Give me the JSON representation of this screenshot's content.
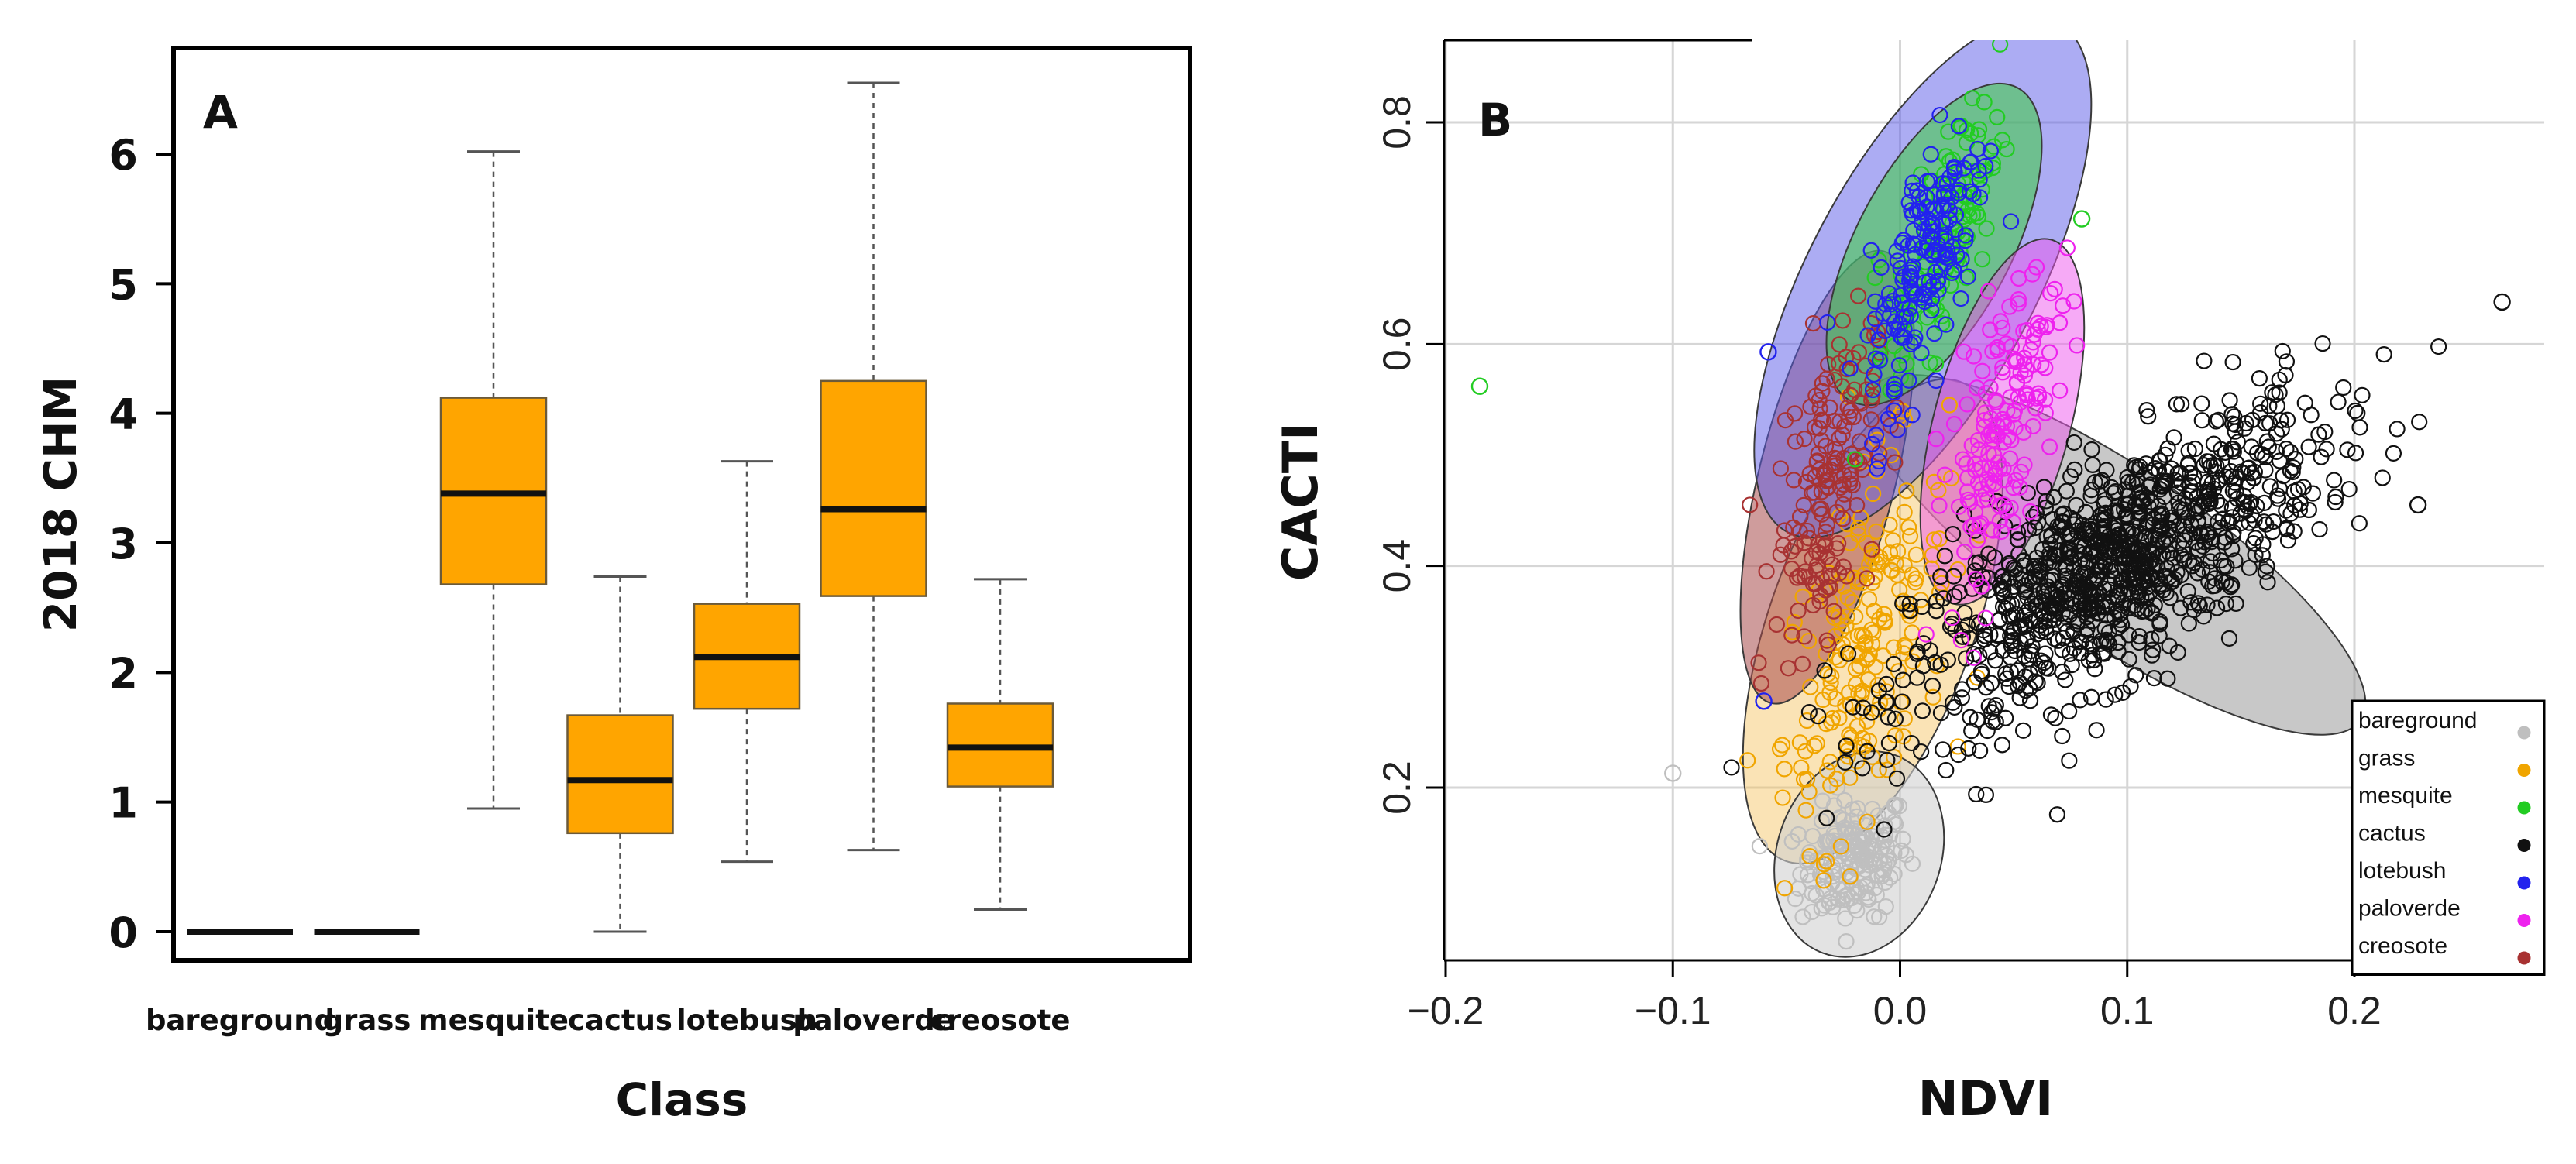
{
  "chart_data": [
    {
      "type": "box",
      "panel_label": "A",
      "title": "",
      "xlabel": "Class",
      "ylabel": "2018 CHM",
      "ylim": [
        -0.3,
        6.8
      ],
      "yticks": [
        0,
        1,
        2,
        3,
        4,
        5,
        6
      ],
      "ytick_labels": [
        "0",
        "1",
        "2",
        "3",
        "4",
        "5",
        "6"
      ],
      "categories": [
        "bareground",
        "grass",
        "mesquite",
        "cactus",
        "lotebush",
        "paloverde",
        "creosote"
      ],
      "box_color": "#ffa500",
      "boxes": [
        {
          "whisker_low": 0,
          "q1": 0,
          "median": 0,
          "q3": 0,
          "whisker_high": 0
        },
        {
          "whisker_low": 0,
          "q1": 0,
          "median": 0,
          "q3": 0,
          "whisker_high": 0
        },
        {
          "whisker_low": 0.95,
          "q1": 2.68,
          "median": 3.38,
          "q3": 4.12,
          "whisker_high": 6.02
        },
        {
          "whisker_low": 0.0,
          "q1": 0.76,
          "median": 1.17,
          "q3": 1.67,
          "whisker_high": 2.74
        },
        {
          "whisker_low": 0.54,
          "q1": 1.72,
          "median": 2.12,
          "q3": 2.53,
          "whisker_high": 3.63
        },
        {
          "whisker_low": 0.63,
          "q1": 2.59,
          "median": 3.26,
          "q3": 4.25,
          "whisker_high": 6.55
        },
        {
          "whisker_low": 0.17,
          "q1": 1.12,
          "median": 1.42,
          "q3": 1.76,
          "whisker_high": 2.72
        }
      ]
    },
    {
      "type": "scatter",
      "panel_label": "B",
      "title": "",
      "xlabel": "NDVI",
      "ylabel": "CACTI",
      "xlim": [
        -0.205,
        0.3
      ],
      "ylim": [
        0.04,
        0.875
      ],
      "xticks": [
        -0.2,
        -0.1,
        0.0,
        0.1,
        0.2
      ],
      "xtick_labels": [
        "−0.2",
        "−0.1",
        "0.0",
        "0.1",
        "0.2"
      ],
      "yticks": [
        0.2,
        0.4,
        0.6,
        0.8
      ],
      "ytick_labels": [
        "0.2",
        "0.4",
        "0.6",
        "0.8"
      ],
      "grid": true,
      "legend_position": "bottom-right",
      "series": [
        {
          "name": "bareground",
          "color": "#bfbfbf",
          "n": 180,
          "center": [
            -0.02,
            0.135
          ],
          "sd": [
            0.012,
            0.028
          ],
          "corr": 0.2,
          "ellipse": {
            "center": [
              -0.018,
              0.14
            ],
            "rx": 0.036,
            "ry": 0.095,
            "angle_deg": 20
          },
          "fill": "#d0d0d0",
          "fill_opacity": 0.6
        },
        {
          "name": "grass",
          "color": "#f0a500",
          "n": 200,
          "center": [
            -0.015,
            0.33
          ],
          "sd": [
            0.018,
            0.085
          ],
          "corr": 0.5,
          "ellipse": {
            "center": [
              -0.012,
              0.35
            ],
            "rx": 0.045,
            "ry": 0.23,
            "angle_deg": 20
          },
          "fill": "#f5c25a",
          "fill_opacity": 0.45
        },
        {
          "name": "mesquite",
          "color": "#22cc22",
          "n": 120,
          "center": [
            0.02,
            0.7
          ],
          "sd": [
            0.012,
            0.06
          ],
          "corr": 0.7,
          "ellipse": {
            "center": [
              0.015,
              0.69
            ],
            "rx": 0.034,
            "ry": 0.16,
            "angle_deg": 28
          },
          "fill": "#3ccf3c",
          "fill_opacity": 0.55
        },
        {
          "name": "cactus",
          "color": "#111111",
          "n": 1000,
          "center": [
            0.095,
            0.4
          ],
          "sd": [
            0.045,
            0.07
          ],
          "corr": 0.72,
          "ellipse": {
            "center": [
              0.095,
              0.41
            ],
            "rx": 0.13,
            "ry": 0.078,
            "angle_deg": 34
          },
          "fill": "#9a9a9a",
          "fill_opacity": 0.55
        },
        {
          "name": "lotebush",
          "color": "#2222ee",
          "n": 180,
          "center": [
            0.012,
            0.68
          ],
          "sd": [
            0.013,
            0.07
          ],
          "corr": 0.7,
          "ellipse": {
            "center": [
              0.01,
              0.66
            ],
            "rx": 0.05,
            "ry": 0.26,
            "angle_deg": 28
          },
          "fill": "#5a5ae8",
          "fill_opacity": 0.5
        },
        {
          "name": "paloverde",
          "color": "#ee22ee",
          "n": 160,
          "center": [
            0.045,
            0.53
          ],
          "sd": [
            0.012,
            0.07
          ],
          "corr": 0.6,
          "ellipse": {
            "center": [
              0.045,
              0.53
            ],
            "rx": 0.03,
            "ry": 0.17,
            "angle_deg": 15
          },
          "fill": "#ee55ee",
          "fill_opacity": 0.5
        },
        {
          "name": "creosote",
          "color": "#a83232",
          "n": 170,
          "center": [
            -0.033,
            0.47
          ],
          "sd": [
            0.011,
            0.07
          ],
          "corr": 0.45,
          "ellipse": {
            "center": [
              -0.032,
              0.48
            ],
            "rx": 0.03,
            "ry": 0.21,
            "angle_deg": 14
          },
          "fill": "#a84a4a",
          "fill_opacity": 0.55
        }
      ],
      "outliers": [
        {
          "series": "mesquite",
          "x": -0.185,
          "y": 0.562
        },
        {
          "series": "mesquite",
          "x": 0.08,
          "y": 0.713
        },
        {
          "series": "lotebush",
          "x": -0.058,
          "y": 0.593
        },
        {
          "series": "lotebush",
          "x": -0.06,
          "y": 0.278
        },
        {
          "series": "bareground",
          "x": -0.1,
          "y": 0.213
        },
        {
          "series": "cactus",
          "x": 0.265,
          "y": 0.638
        },
        {
          "series": "cactus",
          "x": 0.228,
          "y": 0.455
        }
      ]
    }
  ]
}
